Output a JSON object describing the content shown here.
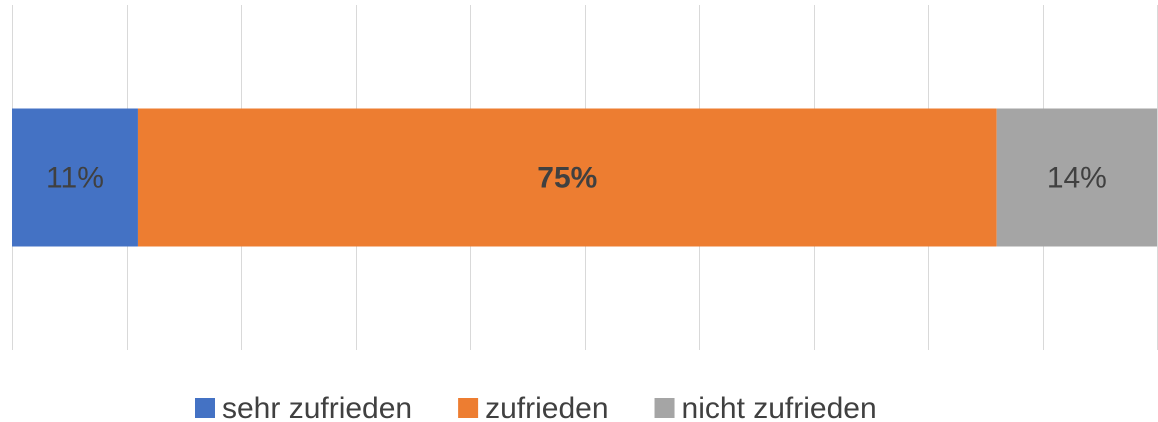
{
  "chart_data": {
    "type": "stacked_barh",
    "categories": [
      null
    ],
    "series": [
      {
        "name": "sehr zufrieden",
        "color": "#4472c4",
        "values": [
          11
        ],
        "value_labels": [
          "11%"
        ]
      },
      {
        "name": "zufrieden",
        "color": "#ed7d31",
        "values": [
          75
        ],
        "value_labels": [
          "75%"
        ]
      },
      {
        "name": "nicht zufrieden",
        "color": "#a5a5a5",
        "values": [
          14
        ],
        "value_labels": [
          "14%"
        ]
      }
    ],
    "xlim": [
      0,
      100
    ],
    "xticks": [
      0,
      10,
      20,
      30,
      40,
      50,
      60,
      70,
      80,
      90,
      100
    ],
    "grid": true,
    "legend": "bottom"
  }
}
